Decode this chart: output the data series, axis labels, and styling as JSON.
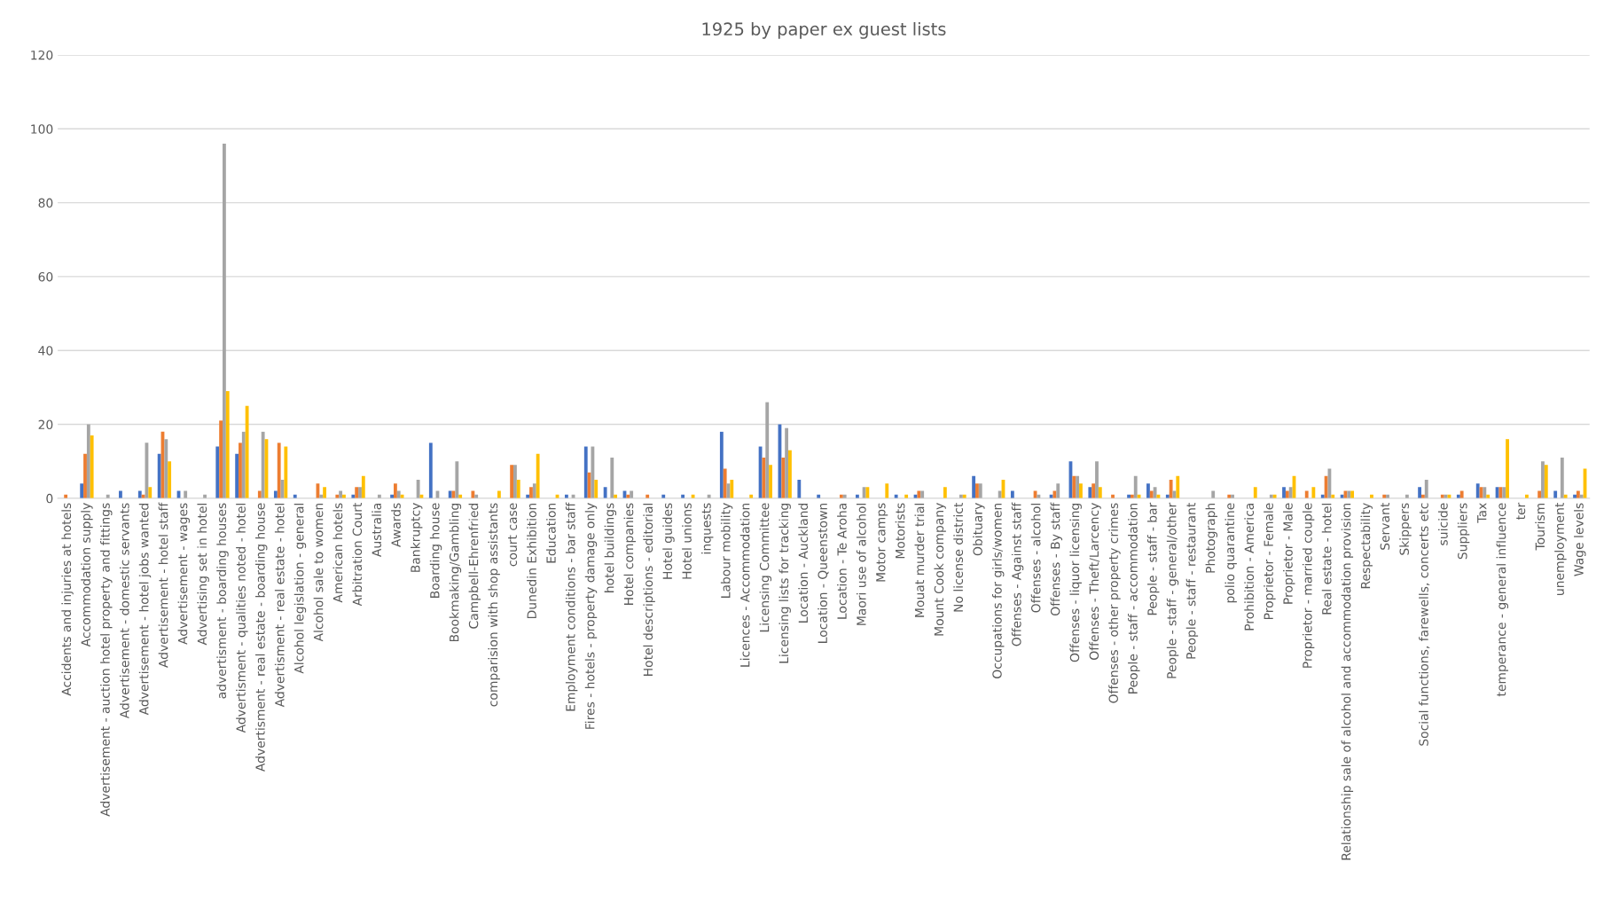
{
  "chart_data": {
    "type": "bar",
    "title": "1925 by paper ex guest lists",
    "categories": [
      "Accidents and injuries at hotels",
      "Accommodation supply",
      "Advertisement - auction hotel property and fittings",
      "Advertisement - domestic servants",
      "Advertisement - hotel jobs wanted",
      "Advertisement - hotel staff",
      "Advertisement - wages",
      "Advertising set in hotel",
      "advertisment - boarding houses",
      "Advertisment - qualities noted - hotel",
      "Advertisment - real estate - boarding house",
      "Advertisment - real estate - hotel",
      "Alcohol legislation - general",
      "Alcohol sale to women",
      "American hotels",
      "Arbitration Court",
      "Australia",
      "Awards",
      "Bankruptcy",
      "Boarding house",
      "Bookmaking/Gambling",
      "Campbell-Ehrenfried",
      "comparision with shop assistants",
      "court case",
      "Dunedin Exhibition",
      "Education",
      "Employment conditions - bar staff",
      "Fires - hotels - property damage only",
      "hotel buildings",
      "Hotel companies",
      "Hotel descriptions - editorial",
      "Hotel guides",
      "Hotel unions",
      "inquests",
      "Labour mobility",
      "Licences - Accommodation",
      "Licensing Committee",
      "Licensing lists for tracking",
      "Location - Auckland",
      "Location - Queenstown",
      "Location - Te Aroha",
      "Maori use of alcohol",
      "Motor camps",
      "Motorists",
      "Mouat murder trial",
      "Mount Cook company",
      "No license district",
      "Obituary",
      "Occupations for girls/women",
      "Offenses - Against staff",
      "Offenses - alcohol",
      "Offenses - By staff",
      "Offenses - liquor licensing",
      "Offenses - Theft/Larcency",
      "Offenses - other property crimes",
      "People - staff - accommodation",
      "People - staff - bar",
      "People - staff - general/other",
      "People - staff - restaurant",
      "Photograph",
      "polio quarantine",
      "Prohibition - America",
      "Proprietor - Female",
      "Proprietor - Male",
      "Proprietor - married couple",
      "Real estate - hotel",
      "Relationship sale of alcohol and accommodation provision",
      "Respectability",
      "Servant",
      "Skippers",
      "Social functions, farewells, concerts etc",
      "suicide",
      "Suppliers",
      "Tax",
      "temperance - general influence",
      "ter",
      "Tourism",
      "unemployment",
      "Wage levels"
    ],
    "series": [
      {
        "color": "#4472c4",
        "values": [
          0,
          4,
          0,
          2,
          2,
          12,
          2,
          0,
          14,
          12,
          0,
          2,
          1,
          0,
          0,
          1,
          0,
          1,
          0,
          15,
          2,
          0,
          0,
          0,
          1,
          0,
          1,
          14,
          3,
          2,
          0,
          1,
          1,
          0,
          18,
          0,
          14,
          20,
          5,
          1,
          0,
          1,
          0,
          1,
          1,
          0,
          0,
          6,
          0,
          2,
          0,
          1,
          10,
          3,
          0,
          1,
          4,
          1,
          0,
          0,
          0,
          0,
          0,
          3,
          0,
          1,
          1,
          0,
          0,
          0,
          3,
          0,
          1,
          4,
          3,
          0,
          0,
          2,
          1
        ]
      },
      {
        "color": "#ed7d31",
        "values": [
          1,
          12,
          0,
          0,
          1,
          18,
          0,
          0,
          21,
          15,
          2,
          15,
          0,
          4,
          1,
          3,
          0,
          4,
          0,
          0,
          2,
          2,
          0,
          9,
          3,
          0,
          0,
          7,
          0,
          1,
          1,
          0,
          0,
          0,
          8,
          0,
          11,
          11,
          0,
          0,
          1,
          0,
          0,
          0,
          2,
          0,
          0,
          4,
          0,
          0,
          2,
          2,
          6,
          4,
          1,
          1,
          2,
          5,
          0,
          0,
          1,
          0,
          0,
          2,
          2,
          6,
          2,
          0,
          1,
          0,
          1,
          1,
          2,
          3,
          3,
          0,
          2,
          0,
          2
        ]
      },
      {
        "color": "#a5a5a5",
        "values": [
          0,
          20,
          1,
          0,
          15,
          16,
          2,
          1,
          96,
          18,
          18,
          5,
          0,
          1,
          2,
          3,
          1,
          2,
          5,
          2,
          10,
          1,
          0,
          9,
          4,
          0,
          1,
          14,
          11,
          2,
          0,
          0,
          0,
          1,
          4,
          0,
          26,
          19,
          0,
          0,
          1,
          3,
          0,
          0,
          2,
          0,
          1,
          4,
          2,
          0,
          1,
          4,
          6,
          10,
          0,
          6,
          3,
          2,
          0,
          2,
          1,
          0,
          1,
          3,
          0,
          8,
          2,
          0,
          1,
          1,
          5,
          1,
          0,
          3,
          3,
          0,
          10,
          11,
          1
        ]
      },
      {
        "color": "#ffc000",
        "values": [
          0,
          17,
          0,
          0,
          3,
          10,
          0,
          0,
          29,
          25,
          16,
          14,
          0,
          3,
          1,
          6,
          0,
          1,
          1,
          0,
          1,
          0,
          2,
          5,
          12,
          1,
          0,
          5,
          1,
          0,
          0,
          0,
          1,
          0,
          5,
          1,
          9,
          13,
          0,
          0,
          0,
          3,
          4,
          1,
          0,
          3,
          1,
          0,
          5,
          0,
          0,
          0,
          4,
          3,
          0,
          1,
          1,
          6,
          0,
          0,
          0,
          3,
          1,
          6,
          3,
          1,
          2,
          1,
          0,
          0,
          0,
          1,
          0,
          1,
          16,
          1,
          9,
          1,
          8
        ]
      }
    ],
    "ylim": [
      0,
      120
    ],
    "yticks": [
      0,
      20,
      40,
      60,
      80,
      100,
      120
    ],
    "grid": "y"
  }
}
